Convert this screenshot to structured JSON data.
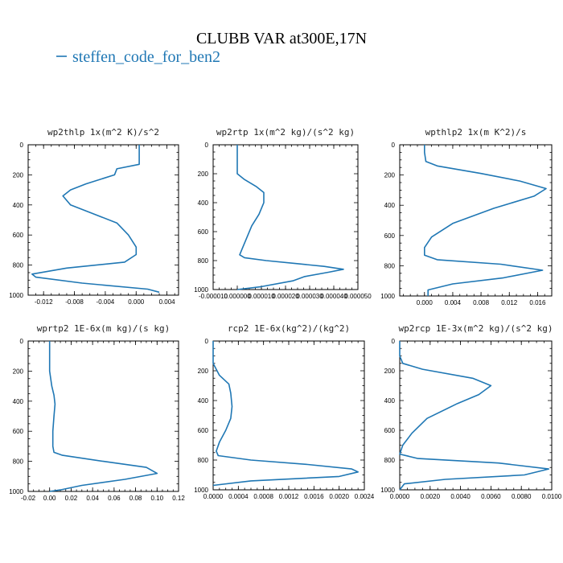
{
  "figure": {
    "title": "CLUBB VAR at300E,17N",
    "legend_label": "steffen_code_for_ben2",
    "line_color": "#1f77b4"
  },
  "chart_data": [
    {
      "type": "line",
      "title": "wp2thlp  1x(m^2 K)/s^2",
      "xlim": [
        -0.014,
        0.0055
      ],
      "ylim": [
        1000,
        0
      ],
      "xticks": [
        -0.012,
        -0.008,
        -0.004,
        0.0,
        0.004
      ],
      "xtick_labels": [
        "-0.012",
        "-0.008",
        "-0.004",
        "0.000",
        "0.004"
      ],
      "yticks": [
        0,
        200,
        400,
        600,
        800,
        1000
      ],
      "ytick_labels": [
        "0",
        "200",
        "400",
        "600",
        "800",
        "1000"
      ],
      "series": [
        {
          "x": [
            0.0004,
            0.0004,
            0.0004,
            -0.0025,
            -0.0028,
            -0.0065,
            -0.0085,
            -0.0095,
            -0.0085,
            -0.006,
            -0.0025,
            -0.001,
            0.0,
            0.0,
            -0.0015,
            -0.009,
            -0.0135,
            -0.013,
            -0.007,
            0.0015,
            0.003
          ],
          "y": [
            0,
            50,
            130,
            160,
            200,
            260,
            300,
            340,
            400,
            450,
            520,
            600,
            680,
            730,
            780,
            820,
            860,
            880,
            920,
            960,
            980
          ]
        }
      ]
    },
    {
      "type": "line",
      "title": "wp2rtp  1x(m^2 kg)/(s^2 kg)",
      "xlim": [
        -1e-05,
        5e-05
      ],
      "ylim": [
        1000,
        0
      ],
      "xticks": [
        -1e-05,
        0.0,
        1e-05,
        2e-05,
        3e-05,
        4e-05,
        5e-05
      ],
      "xtick_labels": [
        "-0.000010",
        "0.000000",
        "0.000010",
        "0.000020",
        "0.000030",
        "0.000040",
        "0.000050"
      ],
      "yticks": [
        0,
        200,
        400,
        600,
        800,
        1000
      ],
      "ytick_labels": [
        "0",
        "200",
        "400",
        "600",
        "800",
        "1000"
      ],
      "series": [
        {
          "x": [
            0.0,
            0.0,
            0.0,
            3e-06,
            8e-06,
            1.1e-05,
            1.1e-05,
            9e-06,
            6e-06,
            4e-06,
            2e-06,
            1e-06,
            3e-06,
            1.2e-05,
            2.4e-05,
            3.6e-05,
            4.4e-05,
            3.8e-05,
            2.8e-05,
            2.3e-05,
            1e-05,
            0.0
          ],
          "y": [
            0,
            100,
            200,
            240,
            290,
            330,
            400,
            480,
            560,
            640,
            720,
            760,
            780,
            800,
            820,
            840,
            860,
            880,
            910,
            940,
            980,
            1000
          ]
        }
      ]
    },
    {
      "type": "line",
      "title": "wpthlp2  1x(m K^2)/s",
      "xlim": [
        -0.0035,
        0.018
      ],
      "ylim": [
        1000,
        0
      ],
      "xticks": [
        0.0,
        0.004,
        0.008,
        0.012,
        0.016
      ],
      "xtick_labels": [
        "0.000",
        "0.004",
        "0.008",
        "0.012",
        "0.016"
      ],
      "yticks": [
        0,
        200,
        400,
        600,
        800,
        1000
      ],
      "ytick_labels": [
        "0",
        "200",
        "400",
        "600",
        "800",
        "1000"
      ],
      "series": [
        {
          "x": [
            0.0,
            0.0,
            0.0002,
            0.0018,
            0.008,
            0.0135,
            0.0172,
            0.0155,
            0.0098,
            0.004,
            0.001,
            0.0,
            0.0,
            0.0018,
            0.0108,
            0.0167,
            0.0112,
            0.004,
            0.0005,
            0.0005
          ],
          "y": [
            0,
            50,
            110,
            140,
            190,
            240,
            290,
            340,
            420,
            520,
            610,
            680,
            730,
            760,
            790,
            830,
            880,
            920,
            960,
            1000
          ]
        }
      ]
    },
    {
      "type": "line",
      "title": "wprtp2  1E-6x(m kg)/(s kg)",
      "xlim": [
        -0.02,
        0.12
      ],
      "ylim": [
        1000,
        0
      ],
      "xticks": [
        -0.02,
        0.0,
        0.02,
        0.04,
        0.06,
        0.08,
        0.1,
        0.12
      ],
      "xtick_labels": [
        "-0.02",
        "0.00",
        "0.02",
        "0.04",
        "0.06",
        "0.08",
        "0.10",
        "0.12"
      ],
      "yticks": [
        0,
        200,
        400,
        600,
        800,
        1000
      ],
      "ytick_labels": [
        "0",
        "200",
        "400",
        "600",
        "800",
        "1000"
      ],
      "series": [
        {
          "x": [
            0.0,
            0.0,
            0.0,
            0.002,
            0.004,
            0.005,
            0.004,
            0.003,
            0.003,
            0.004,
            0.012,
            0.05,
            0.09,
            0.1,
            0.07,
            0.03,
            0.01,
            0.0
          ],
          "y": [
            0,
            100,
            200,
            300,
            360,
            420,
            500,
            600,
            700,
            740,
            760,
            800,
            840,
            880,
            920,
            960,
            990,
            1000
          ]
        }
      ]
    },
    {
      "type": "line",
      "title": "rcp2  1E-6x(kg^2)/(kg^2)",
      "xlim": [
        0.0,
        0.0024
      ],
      "ylim": [
        1000,
        0
      ],
      "xticks": [
        0.0,
        0.0004,
        0.0008,
        0.0012,
        0.0016,
        0.002,
        0.0024
      ],
      "xtick_labels": [
        "0.0000",
        "0.0004",
        "0.0008",
        "0.0012",
        "0.0016",
        "0.0020",
        "0.0024"
      ],
      "yticks": [
        0,
        200,
        400,
        600,
        800,
        1000
      ],
      "ytick_labels": [
        "0",
        "200",
        "400",
        "600",
        "800",
        "1000"
      ],
      "series": [
        {
          "x": [
            0.0,
            0.0,
            0.0001,
            0.00025,
            0.00028,
            0.0003,
            0.00028,
            0.0002,
            0.0001,
            5e-05,
            8e-05,
            0.0006,
            0.0015,
            0.0022,
            0.0023,
            0.002,
            0.0006,
            0.0
          ],
          "y": [
            0,
            150,
            230,
            290,
            350,
            440,
            520,
            600,
            680,
            740,
            770,
            800,
            830,
            860,
            880,
            910,
            940,
            970
          ]
        }
      ]
    },
    {
      "type": "line",
      "title": "wp2rcp  1E-3x(m^2 kg)/(s^2 kg)",
      "xlim": [
        0.0,
        0.01
      ],
      "ylim": [
        1000,
        0
      ],
      "xticks": [
        0.0,
        0.002,
        0.004,
        0.006,
        0.008,
        0.01
      ],
      "xtick_labels": [
        "0.0000",
        "0.0020",
        "0.0040",
        "0.0060",
        "0.0080",
        "0.0100"
      ],
      "yticks": [
        0,
        200,
        400,
        600,
        800,
        1000
      ],
      "ytick_labels": [
        "0",
        "200",
        "400",
        "600",
        "800",
        "1000"
      ],
      "series": [
        {
          "x": [
            0.0,
            0.0,
            0.0002,
            0.0015,
            0.0048,
            0.006,
            0.0052,
            0.0038,
            0.0018,
            0.0008,
            0.0002,
            0.0,
            0.0012,
            0.0065,
            0.0098,
            0.0082,
            0.003,
            0.0003,
            0.0
          ],
          "y": [
            0,
            100,
            150,
            190,
            250,
            300,
            360,
            420,
            520,
            620,
            700,
            760,
            790,
            820,
            860,
            900,
            930,
            960,
            1000
          ]
        }
      ]
    }
  ]
}
